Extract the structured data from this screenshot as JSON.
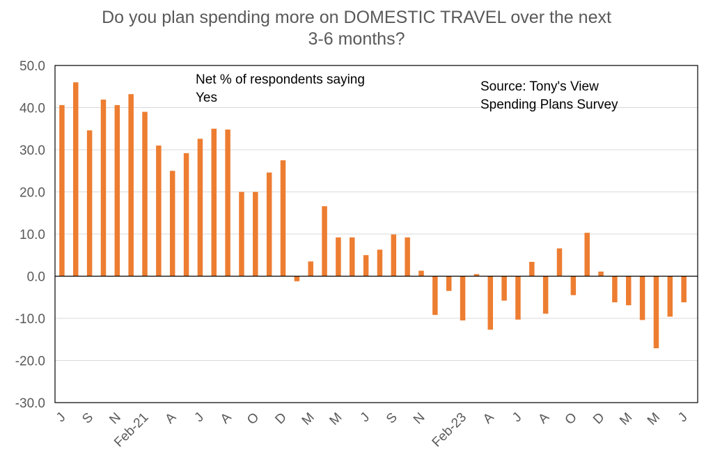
{
  "chart_data": {
    "type": "bar",
    "title_line1": "Do you plan spending more on DOMESTIC TRAVEL over the next",
    "title_line2": "3-6 months?",
    "annotation_left": [
      "Net % of respondents saying",
      "Yes"
    ],
    "annotation_right": [
      "Source: Tony's View",
      "Spending Plans Survey"
    ],
    "ylim": [
      -30,
      50
    ],
    "yticks": [
      "50.0",
      "40.0",
      "30.0",
      "20.0",
      "10.0",
      "0.0",
      "-10.0",
      "-20.0",
      "-30.0"
    ],
    "ytick_values": [
      50,
      40,
      30,
      20,
      10,
      0,
      -10,
      -20,
      -30
    ],
    "grid": true,
    "bar_color": "#ED7D31",
    "series": [
      {
        "name": "Net % of respondents saying Yes",
        "values": [
          40.6,
          46.0,
          34.6,
          41.9,
          40.6,
          43.2,
          39.0,
          31.0,
          25.0,
          29.2,
          32.6,
          35.0,
          34.8,
          20.0,
          20.0,
          24.6,
          27.5,
          -1.2,
          3.5,
          16.6,
          9.2,
          9.2,
          5.0,
          6.3,
          9.9,
          9.2,
          1.3,
          -9.2,
          -3.5,
          -10.5,
          0.5,
          -12.7,
          -5.8,
          -10.3,
          3.4,
          -8.9,
          6.6,
          -4.5,
          10.3,
          1.1,
          -6.2,
          -6.9,
          -10.4,
          -17.1,
          -9.6,
          -6.2
        ]
      }
    ],
    "x_tick_labels": [
      {
        "index": 0,
        "label": "J"
      },
      {
        "index": 2,
        "label": "S"
      },
      {
        "index": 4,
        "label": "N"
      },
      {
        "index": 6,
        "label": "Feb-21"
      },
      {
        "index": 8,
        "label": "A"
      },
      {
        "index": 10,
        "label": "J"
      },
      {
        "index": 12,
        "label": "A"
      },
      {
        "index": 14,
        "label": "O"
      },
      {
        "index": 16,
        "label": "D"
      },
      {
        "index": 18,
        "label": "M"
      },
      {
        "index": 20,
        "label": "M"
      },
      {
        "index": 22,
        "label": "J"
      },
      {
        "index": 24,
        "label": "S"
      },
      {
        "index": 26,
        "label": "N"
      },
      {
        "index": 29,
        "label": "Feb-23"
      },
      {
        "index": 31,
        "label": "A"
      },
      {
        "index": 33,
        "label": "J"
      },
      {
        "index": 35,
        "label": "A"
      },
      {
        "index": 37,
        "label": "O"
      },
      {
        "index": 39,
        "label": "D"
      },
      {
        "index": 41,
        "label": "M"
      },
      {
        "index": 43,
        "label": "M"
      },
      {
        "index": 45,
        "label": "J"
      }
    ]
  }
}
